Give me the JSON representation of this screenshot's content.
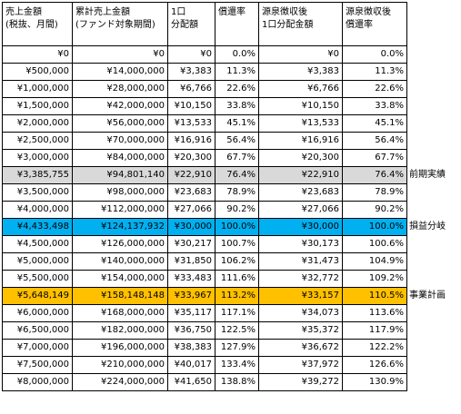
{
  "headers": [
    "売上金額\n(税抜、月間)",
    "累計売上金額\n(ファンド対象期間)",
    "1口\n分配額",
    "償還率",
    "源泉徴収後\n1口分配金額",
    "源泉徴収後\n償還率"
  ],
  "highlight_colors": {
    "gray": "#d9d9d9",
    "blue": "#00b0f0",
    "orange": "#ffc000"
  },
  "rows": [
    {
      "cells": [
        "¥0",
        "¥0",
        "¥0",
        "0.0%",
        "¥0",
        "0.0%"
      ],
      "note": "",
      "highlight": ""
    },
    {
      "cells": [
        "¥500,000",
        "¥14,000,000",
        "¥3,383",
        "11.3%",
        "¥3,383",
        "11.3%"
      ],
      "note": "",
      "highlight": ""
    },
    {
      "cells": [
        "¥1,000,000",
        "¥28,000,000",
        "¥6,766",
        "22.6%",
        "¥6,766",
        "22.6%"
      ],
      "note": "",
      "highlight": ""
    },
    {
      "cells": [
        "¥1,500,000",
        "¥42,000,000",
        "¥10,150",
        "33.8%",
        "¥10,150",
        "33.8%"
      ],
      "note": "",
      "highlight": ""
    },
    {
      "cells": [
        "¥2,000,000",
        "¥56,000,000",
        "¥13,533",
        "45.1%",
        "¥13,533",
        "45.1%"
      ],
      "note": "",
      "highlight": ""
    },
    {
      "cells": [
        "¥2,500,000",
        "¥70,000,000",
        "¥16,916",
        "56.4%",
        "¥16,916",
        "56.4%"
      ],
      "note": "",
      "highlight": ""
    },
    {
      "cells": [
        "¥3,000,000",
        "¥84,000,000",
        "¥20,300",
        "67.7%",
        "¥20,300",
        "67.7%"
      ],
      "note": "",
      "highlight": ""
    },
    {
      "cells": [
        "¥3,385,755",
        "¥94,801,140",
        "¥22,910",
        "76.4%",
        "¥22,910",
        "76.4%"
      ],
      "note": "前期実績",
      "highlight": "gray"
    },
    {
      "cells": [
        "¥3,500,000",
        "¥98,000,000",
        "¥23,683",
        "78.9%",
        "¥23,683",
        "78.9%"
      ],
      "note": "",
      "highlight": ""
    },
    {
      "cells": [
        "¥4,000,000",
        "¥112,000,000",
        "¥27,066",
        "90.2%",
        "¥27,066",
        "90.2%"
      ],
      "note": "",
      "highlight": ""
    },
    {
      "cells": [
        "¥4,433,498",
        "¥124,137,932",
        "¥30,000",
        "100.0%",
        "¥30,000",
        "100.0%"
      ],
      "note": "損益分岐",
      "highlight": "blue"
    },
    {
      "cells": [
        "¥4,500,000",
        "¥126,000,000",
        "¥30,217",
        "100.7%",
        "¥30,173",
        "100.6%"
      ],
      "note": "",
      "highlight": ""
    },
    {
      "cells": [
        "¥5,000,000",
        "¥140,000,000",
        "¥31,850",
        "106.2%",
        "¥31,473",
        "104.9%"
      ],
      "note": "",
      "highlight": ""
    },
    {
      "cells": [
        "¥5,500,000",
        "¥154,000,000",
        "¥33,483",
        "111.6%",
        "¥32,772",
        "109.2%"
      ],
      "note": "",
      "highlight": ""
    },
    {
      "cells": [
        "¥5,648,149",
        "¥158,148,148",
        "¥33,967",
        "113.2%",
        "¥33,157",
        "110.5%"
      ],
      "note": "事業計画",
      "highlight": "orange"
    },
    {
      "cells": [
        "¥6,000,000",
        "¥168,000,000",
        "¥35,117",
        "117.1%",
        "¥34,073",
        "113.6%"
      ],
      "note": "",
      "highlight": ""
    },
    {
      "cells": [
        "¥6,500,000",
        "¥182,000,000",
        "¥36,750",
        "122.5%",
        "¥35,372",
        "117.9%"
      ],
      "note": "",
      "highlight": ""
    },
    {
      "cells": [
        "¥7,000,000",
        "¥196,000,000",
        "¥38,383",
        "127.9%",
        "¥36,672",
        "122.2%"
      ],
      "note": "",
      "highlight": ""
    },
    {
      "cells": [
        "¥7,500,000",
        "¥210,000,000",
        "¥40,017",
        "133.4%",
        "¥37,972",
        "126.6%"
      ],
      "note": "",
      "highlight": ""
    },
    {
      "cells": [
        "¥8,000,000",
        "¥224,000,000",
        "¥41,650",
        "138.8%",
        "¥39,272",
        "130.9%"
      ],
      "note": "",
      "highlight": ""
    }
  ]
}
